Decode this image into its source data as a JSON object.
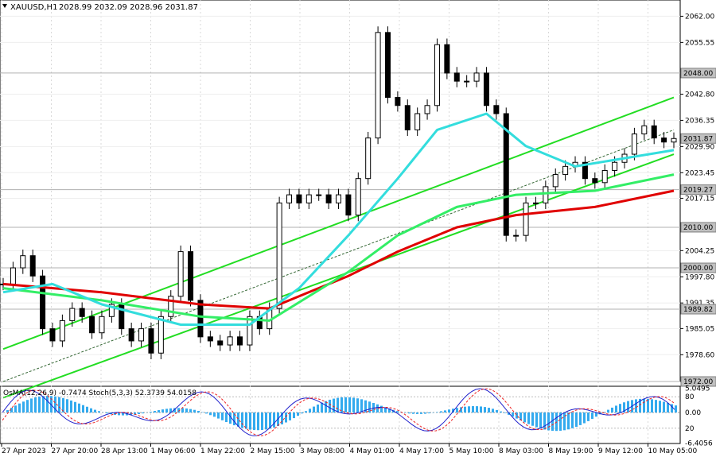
{
  "header": {
    "symbol": "XAUUSD,H1",
    "ohlc": "2028.99 2032.09 2028.96 2031.87"
  },
  "price_axis": {
    "ticks": [
      "2062.00",
      "2055.55",
      "2042.80",
      "2036.35",
      "2029.90",
      "2023.45",
      "2017.15",
      "2004.25",
      "1997.80",
      "1991.35",
      "1985.05",
      "1978.60"
    ]
  },
  "price_tags": [
    {
      "value": "2048.00",
      "role": "level",
      "color": "#c0c0c0"
    },
    {
      "value": "2031.87",
      "role": "current",
      "color": "#c0c0c0"
    },
    {
      "value": "2019.27",
      "role": "level",
      "color": "#c0c0c0"
    },
    {
      "value": "2010.00",
      "role": "level",
      "color": "#c0c0c0"
    },
    {
      "value": "2000.00",
      "role": "level",
      "color": "#c0c0c0"
    },
    {
      "value": "1989.82",
      "role": "level",
      "color": "#c0c0c0"
    },
    {
      "value": "1972.00",
      "role": "level",
      "color": "#c0c0c0"
    }
  ],
  "oscillator": {
    "label": "OsMA(12,26,9) -0.7474  Stoch(5,3,3) 52.3739 54.0158",
    "ticks": [
      "5.0495",
      "80",
      "0.00",
      "20",
      "-6.4056"
    ]
  },
  "time_axis": {
    "labels": [
      "27 Apr 2023",
      "27 Apr 20:00",
      "28 Apr 13:00",
      "1 May 06:00",
      "1 May 22:00",
      "2 May 15:00",
      "3 May 08:00",
      "4 May 01:00",
      "4 May 17:00",
      "5 May 10:00",
      "8 May 03:00",
      "8 May 19:00",
      "9 May 12:00",
      "10 May 05:00"
    ]
  },
  "chart_data": {
    "type": "candlestick",
    "symbol": "XAUUSD",
    "timeframe": "H1",
    "last_close": 2031.87,
    "ylim": [
      1972,
      2066
    ],
    "series": [
      {
        "name": "price",
        "points": [
          [
            0,
            1996
          ],
          [
            1,
            2000
          ],
          [
            2,
            2003
          ],
          [
            3,
            1998
          ],
          [
            4,
            1985
          ],
          [
            5,
            1982
          ],
          [
            6,
            1987
          ],
          [
            7,
            1990
          ],
          [
            8,
            1988
          ],
          [
            9,
            1984
          ],
          [
            10,
            1988
          ],
          [
            11,
            1991
          ],
          [
            12,
            1985
          ],
          [
            13,
            1982
          ],
          [
            14,
            1985
          ],
          [
            15,
            1979
          ],
          [
            16,
            1988
          ],
          [
            17,
            1993
          ],
          [
            18,
            2004
          ],
          [
            19,
            1992
          ],
          [
            20,
            1983
          ],
          [
            21,
            1982
          ],
          [
            22,
            1981
          ],
          [
            23,
            1983
          ],
          [
            24,
            1981
          ],
          [
            25,
            1988
          ],
          [
            26,
            1985
          ],
          [
            27,
            1990
          ],
          [
            28,
            2016
          ],
          [
            29,
            2018
          ],
          [
            30,
            2016
          ],
          [
            31,
            2018
          ],
          [
            32,
            2018
          ],
          [
            33,
            2016
          ],
          [
            34,
            2018
          ],
          [
            35,
            2013
          ],
          [
            36,
            2022
          ],
          [
            37,
            2032
          ],
          [
            38,
            2058
          ],
          [
            39,
            2042
          ],
          [
            40,
            2040
          ],
          [
            41,
            2034
          ],
          [
            42,
            2038
          ],
          [
            43,
            2040
          ],
          [
            44,
            2055
          ],
          [
            45,
            2048
          ],
          [
            46,
            2046
          ],
          [
            47,
            2046
          ],
          [
            48,
            2048
          ],
          [
            49,
            2040
          ],
          [
            50,
            2038
          ],
          [
            51,
            2008
          ],
          [
            52,
            2008
          ],
          [
            53,
            2016
          ],
          [
            54,
            2016
          ],
          [
            55,
            2020
          ],
          [
            56,
            2023
          ],
          [
            57,
            2025
          ],
          [
            58,
            2026
          ],
          [
            59,
            2022
          ],
          [
            60,
            2021
          ],
          [
            61,
            2024
          ],
          [
            62,
            2026
          ],
          [
            63,
            2028
          ],
          [
            64,
            2033
          ],
          [
            65,
            2035
          ],
          [
            66,
            2032
          ],
          [
            67,
            2031
          ],
          [
            68,
            2031.87
          ]
        ]
      },
      {
        "name": "ma-red",
        "points": [
          [
            0,
            1996
          ],
          [
            10,
            1994
          ],
          [
            20,
            1991
          ],
          [
            27,
            1990
          ],
          [
            35,
            1998
          ],
          [
            40,
            2004
          ],
          [
            46,
            2010
          ],
          [
            52,
            2013
          ],
          [
            60,
            2015
          ],
          [
            68,
            2019
          ]
        ]
      },
      {
        "name": "ma-green",
        "points": [
          [
            0,
            1995
          ],
          [
            10,
            1992
          ],
          [
            20,
            1988
          ],
          [
            27,
            1987
          ],
          [
            35,
            1999
          ],
          [
            40,
            2008
          ],
          [
            46,
            2015
          ],
          [
            52,
            2018
          ],
          [
            60,
            2019
          ],
          [
            68,
            2023
          ]
        ]
      },
      {
        "name": "ma-cyan",
        "points": [
          [
            0,
            1994
          ],
          [
            5,
            1996
          ],
          [
            10,
            1991
          ],
          [
            18,
            1986
          ],
          [
            25,
            1986
          ],
          [
            30,
            1995
          ],
          [
            35,
            2008
          ],
          [
            40,
            2022
          ],
          [
            44,
            2034
          ],
          [
            49,
            2038
          ],
          [
            53,
            2030
          ],
          [
            58,
            2025
          ],
          [
            63,
            2027
          ],
          [
            68,
            2029
          ]
        ]
      }
    ],
    "channel": {
      "upper": [
        [
          0,
          1980
        ],
        [
          68,
          2042
        ]
      ],
      "lower": [
        [
          0,
          1968
        ],
        [
          68,
          2028
        ]
      ],
      "mid": [
        [
          0,
          1972
        ],
        [
          68,
          2034
        ]
      ]
    }
  }
}
